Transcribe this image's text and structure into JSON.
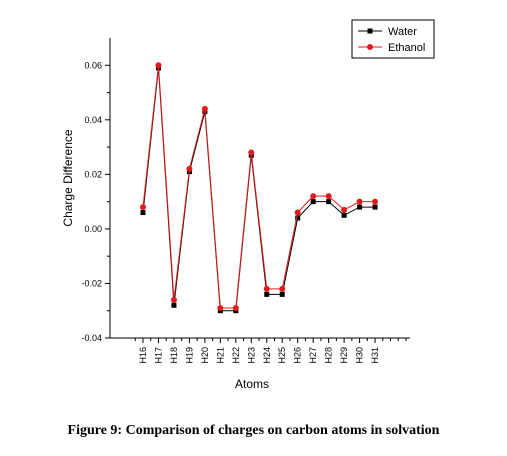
{
  "caption": "Figure 9: Comparison of charges on carbon atoms in solvation",
  "chart_data": {
    "type": "line",
    "xlabel": "Atoms",
    "ylabel": "Charge Difference",
    "categories": [
      "H16",
      "H17",
      "H18",
      "H19",
      "H20",
      "H21",
      "H22",
      "H23",
      "H24",
      "H25",
      "H26",
      "H27",
      "H28",
      "H29",
      "H30",
      "H31"
    ],
    "ylim": [
      -0.04,
      0.07
    ],
    "yticks": [
      -0.04,
      -0.02,
      0.0,
      0.02,
      0.04,
      0.06
    ],
    "ytick_labels": [
      "-0.04",
      "-0.02",
      "0.00",
      "0.02",
      "0.04",
      "0.06"
    ],
    "grid": false,
    "legend_position": "top-right",
    "series": [
      {
        "name": "Water",
        "color": "#000000",
        "marker": "square",
        "values": [
          0.006,
          0.059,
          -0.028,
          0.021,
          0.043,
          -0.03,
          -0.03,
          0.027,
          -0.024,
          -0.024,
          0.004,
          0.01,
          0.01,
          0.005,
          0.008,
          0.008
        ]
      },
      {
        "name": "Ethanol",
        "color": "#e31a1c",
        "marker": "circle",
        "values": [
          0.008,
          0.06,
          -0.026,
          0.022,
          0.044,
          -0.029,
          -0.029,
          0.028,
          -0.022,
          -0.022,
          0.006,
          0.012,
          0.012,
          0.007,
          0.01,
          0.01
        ]
      }
    ]
  }
}
